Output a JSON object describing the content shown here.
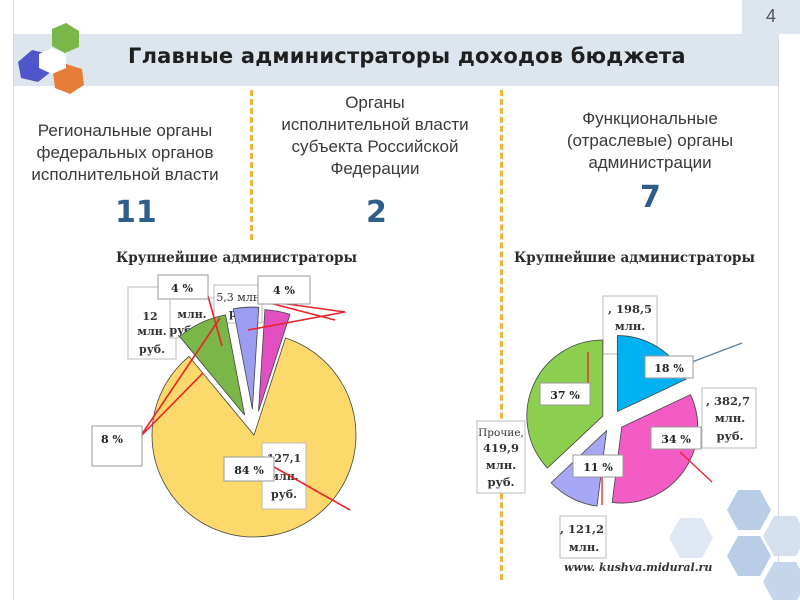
{
  "header": {
    "title": "Главные администраторы доходов бюджета",
    "page_number": "4"
  },
  "categories": [
    {
      "label_lines": [
        "Региональные органы",
        "федеральных органов",
        "исполнительной власти"
      ],
      "count": "11"
    },
    {
      "label_lines": [
        "Органы",
        "исполнительной власти",
        "субъекта Российской",
        "Федерации"
      ],
      "count": "2"
    },
    {
      "label_lines": [
        "Функциональные",
        "(отраслевые) органы",
        "администрации"
      ],
      "count": "7"
    }
  ],
  "footer": {
    "url": "www. kushva.midural.ru"
  },
  "colors": {
    "yellow": "#fdd86a",
    "green": "#7ab648",
    "purple": "#9c9cf2",
    "magenta": "#e24fc0",
    "cyan": "#00b0f0",
    "pink": "#f25cc4",
    "lavender": "#a7a7f5",
    "lime": "#8ccf4f",
    "red": "#e8232a",
    "slate": "#5b7fa0"
  },
  "chart_data": [
    {
      "type": "pie",
      "title": "Крупнейшие администраторы",
      "slices": [
        {
          "percent": 84,
          "pct_label": "84 %",
          "amount_lines": [
            "127,1",
            "млн.",
            "руб."
          ],
          "color": "#fdd86a"
        },
        {
          "percent": 8,
          "pct_label": "8 %",
          "amount_lines": [
            "12",
            "млн.",
            "руб."
          ],
          "color": "#7ab648"
        },
        {
          "percent": 4,
          "pct_label": "4 %",
          "amount_lines": [
            "млн.",
            "рублей"
          ],
          "color": "#9c9cf2"
        },
        {
          "percent": 4,
          "pct_label": "4 %",
          "amount_lines": [
            "5,3 млн.",
            "руб."
          ],
          "color": "#e24fc0"
        }
      ]
    },
    {
      "type": "pie",
      "title": "Крупнейшие администраторы",
      "slices": [
        {
          "percent": 18,
          "pct_label": "18 %",
          "amount_lines": [
            ", 198,5",
            "млн.",
            "руб."
          ],
          "color": "#00b0f0"
        },
        {
          "percent": 34,
          "pct_label": "34 %",
          "amount_lines": [
            ", 382,7",
            "млн.",
            "руб."
          ],
          "color": "#f25cc4"
        },
        {
          "percent": 11,
          "pct_label": "11 %",
          "amount_lines": [
            ", 121,2",
            "млн."
          ],
          "color": "#a7a7f5"
        },
        {
          "percent": 37,
          "pct_label": "37 %",
          "amount_lines": [
            "Прочие,",
            "419,9",
            "млн.",
            "руб."
          ],
          "color": "#8ccf4f"
        }
      ]
    }
  ]
}
